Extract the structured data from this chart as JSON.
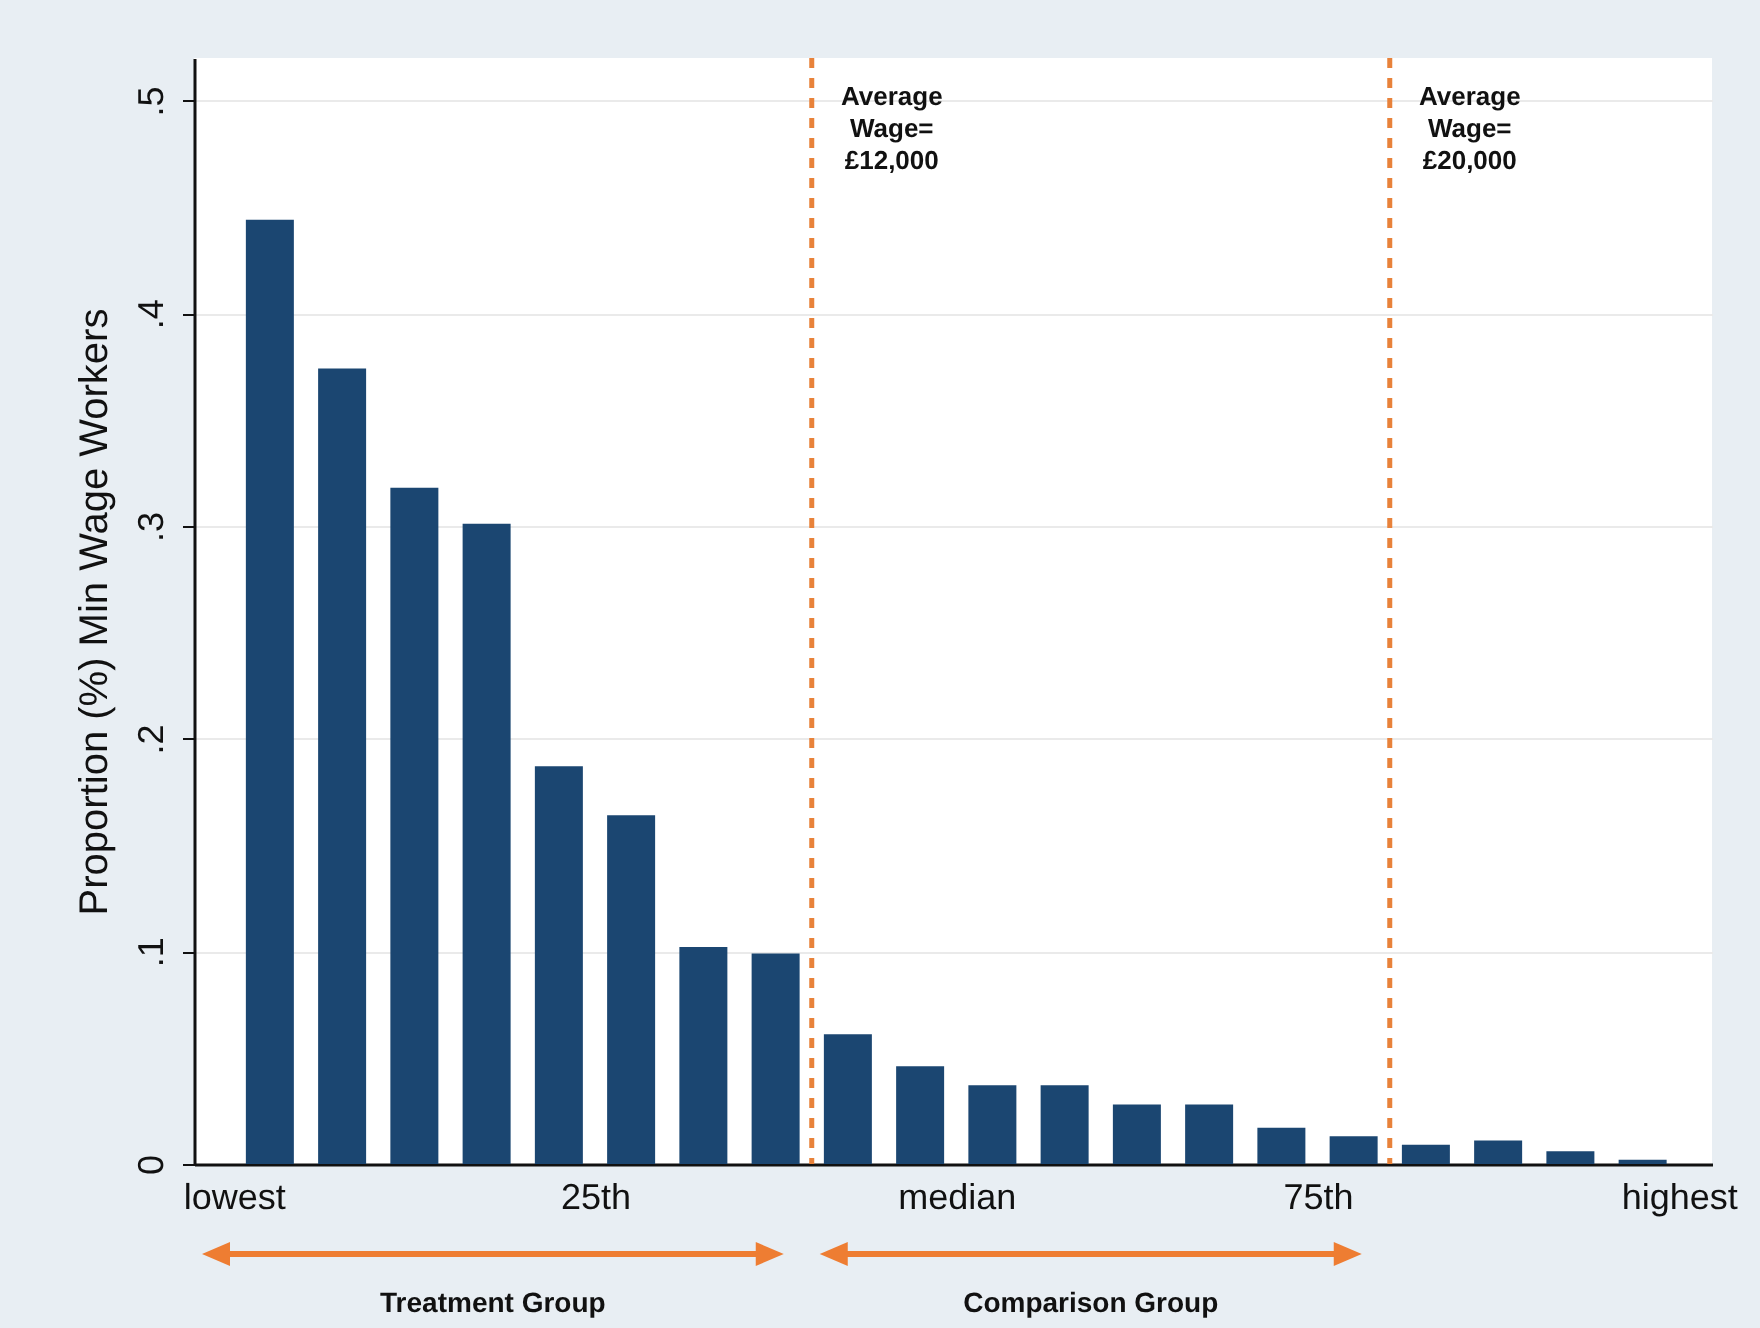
{
  "chart_data": {
    "type": "bar",
    "ylabel": "Proportion (%) Min Wage Workers",
    "x": [
      2.5,
      7.5,
      12.5,
      17.5,
      22.5,
      27.5,
      32.5,
      37.5,
      42.5,
      47.5,
      52.5,
      57.5,
      62.5,
      67.5,
      72.5,
      77.5,
      82.5,
      87.5,
      92.5,
      97.5
    ],
    "values": [
      0.444,
      0.374,
      0.318,
      0.301,
      0.187,
      0.164,
      0.102,
      0.099,
      0.061,
      0.046,
      0.037,
      0.037,
      0.028,
      0.028,
      0.017,
      0.013,
      0.009,
      0.011,
      0.006,
      0.002
    ],
    "color": "#1b4671",
    "xlim": [
      -2.75,
      102.3
    ],
    "xticks": [
      {
        "value": 0,
        "label": "lowest"
      },
      {
        "value": 25,
        "label": "25th"
      },
      {
        "value": 50,
        "label": "median"
      },
      {
        "value": 75,
        "label": "75th"
      },
      {
        "value": 100,
        "label": "highest"
      }
    ],
    "ylim": [
      0,
      0.52
    ],
    "yticks": [
      0,
      {
        "value": 0.1,
        "label": ".1"
      },
      {
        "value": 0.2,
        "label": ".2"
      },
      {
        "value": 0.3,
        "label": ".3"
      },
      {
        "value": 0.4,
        "label": ".4"
      },
      {
        "value": 0.5,
        "label": ".5"
      }
    ],
    "grid": "y",
    "ref_lines": [
      {
        "axis": "x",
        "value": 40,
        "color": "#e8823a",
        "line_style": "dashed"
      },
      {
        "axis": "x",
        "value": 80,
        "color": "#e8823a",
        "line_style": "dashed"
      }
    ],
    "annotations": [
      {
        "text": "Average Wage= £12,000",
        "x": 40,
        "y": 0.5
      },
      {
        "text": "Average Wage= £20,000",
        "x": 80,
        "y": 0.5
      },
      "Treatment Group",
      "Comparison Group"
    ]
  }
}
